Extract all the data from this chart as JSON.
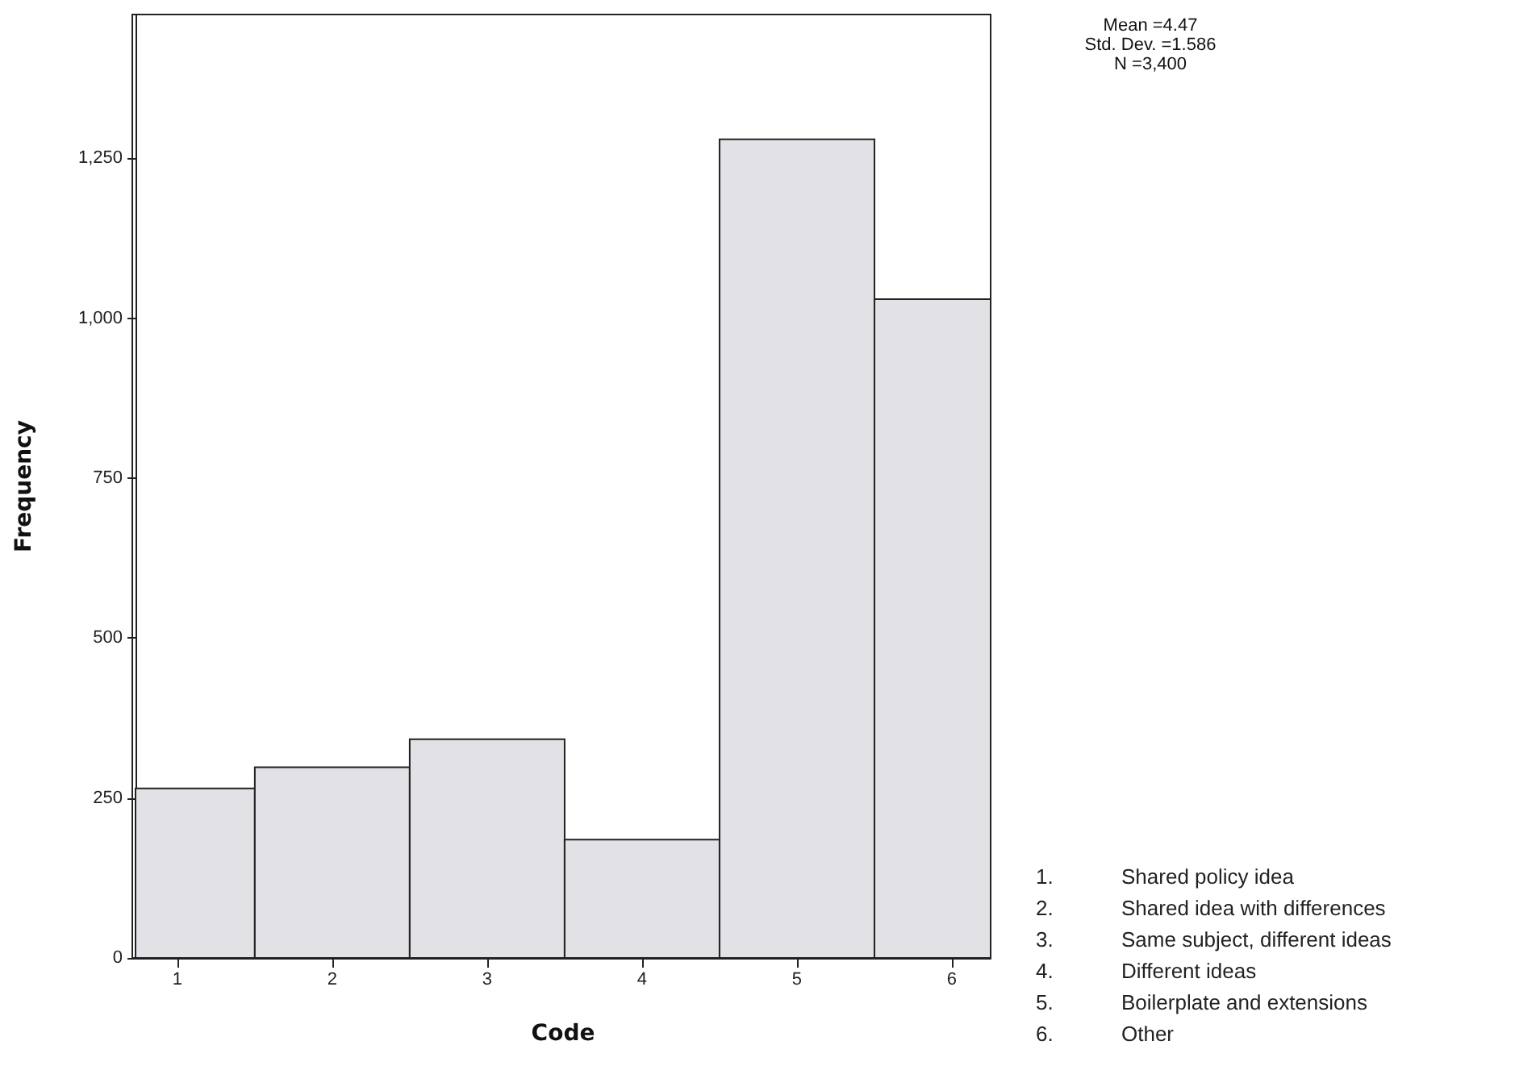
{
  "chart_data": {
    "type": "histogram",
    "xlabel": "Code",
    "ylabel": "Frequency",
    "bins": [
      0.73,
      1.5,
      2.5,
      3.5,
      4.5,
      5.5,
      6.25
    ],
    "values": [
      265,
      298,
      342,
      185,
      1280,
      1030
    ],
    "color": "#e1e1e6",
    "xlim": [
      0.73,
      6.25
    ],
    "xticks": [
      1,
      2,
      3,
      4,
      5,
      6
    ],
    "ylim": [
      0,
      1475
    ],
    "yticks": [
      0,
      250,
      500,
      750,
      {
        "value": 1000,
        "label": "1,000"
      },
      {
        "value": 1250,
        "label": "1,250"
      }
    ],
    "grid": false,
    "annotations": [
      "Mean =4.47\nStd. Dev. =1.586\nN =3,400",
      "1. Shared policy idea",
      "2. Shared idea with differences",
      "3. Same subject, different ideas",
      "4. Different ideas",
      "5. Boilerplate and extensions",
      "6. Other"
    ]
  }
}
